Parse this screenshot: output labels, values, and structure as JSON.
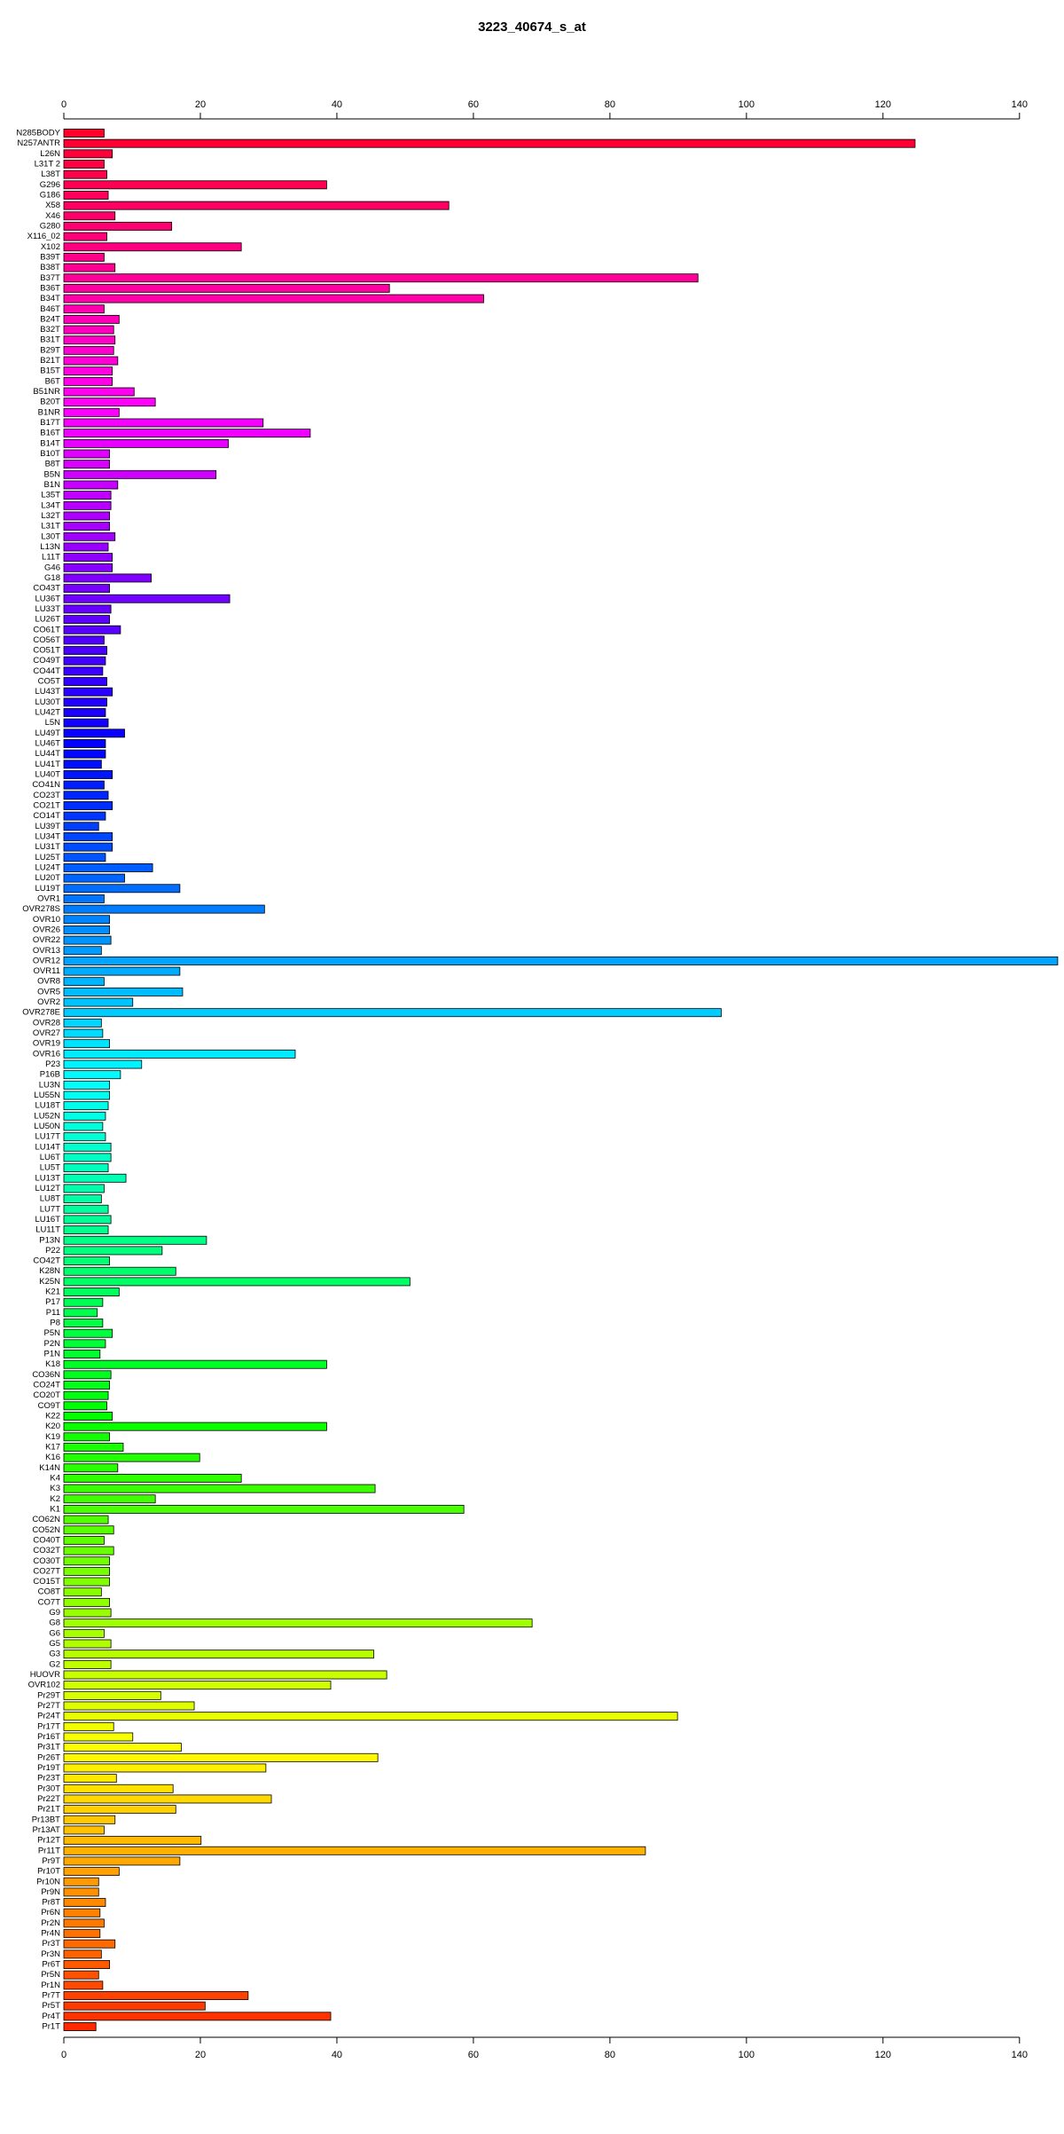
{
  "chart_data": {
    "type": "barh",
    "title": "3223_40674_s_at",
    "categories": [
      "N285BODY",
      "N257ANTR",
      "L26N",
      "L31T 2",
      "L38T",
      "G296",
      "G186",
      "X58",
      "X46",
      "G280",
      "X116_02",
      "X102",
      "B39T",
      "B38T",
      "B37T",
      "B36T",
      "B34T",
      "B46T",
      "B24T",
      "B32T",
      "B31T",
      "B29T",
      "B21T",
      "B15T",
      "B6T",
      "B51NR",
      "B20T",
      "B1NR",
      "B17T",
      "B16T",
      "B14T",
      "B10T",
      "B8T",
      "B5N",
      "B1N",
      "L35T",
      "L34T",
      "L32T",
      "L31T",
      "L30T",
      "L13N",
      "L11T",
      "G46",
      "G18",
      "CO43T",
      "LU36T",
      "LU33T",
      "LU26T",
      "CO61T",
      "CO56T",
      "CO51T",
      "CO49T",
      "CO44T",
      "CO5T",
      "LU43T",
      "LU30T",
      "LU42T",
      "L5N",
      "LU49T",
      "LU46T",
      "LU44T",
      "LU41T",
      "LU40T",
      "CO41N",
      "CO23T",
      "CO21T",
      "CO14T",
      "LU39T",
      "LU34T",
      "LU31T",
      "LU25T",
      "LU24T",
      "LU20T",
      "LU19T",
      "OVR1",
      "OVR278S",
      "OVR10",
      "OVR26",
      "OVR22",
      "OVR13",
      "OVR12",
      "OVR11",
      "OVR8",
      "OVR5",
      "OVR2",
      "OVR278E",
      "OVR28",
      "OVR27",
      "OVR19",
      "OVR16",
      "P23",
      "P16B",
      "LU3N",
      "LU55N",
      "LU18T",
      "LU52N",
      "LU50N",
      "LU17T",
      "LU14T",
      "LU6T",
      "LU5T",
      "LU13T",
      "LU12T",
      "LU8T",
      "LU7T",
      "LU16T",
      "LU11T",
      "P13N",
      "P22",
      "CO42T",
      "K28N",
      "K25N",
      "K21",
      "P17",
      "P11",
      "P8",
      "P5N",
      "P2N",
      "P1N",
      "K18",
      "CO36N",
      "CO24T",
      "CO20T",
      "CO9T",
      "K22",
      "K20",
      "K19",
      "K17",
      "K16",
      "K14N",
      "K4",
      "K3",
      "K2",
      "K1",
      "CO62N",
      "CO52N",
      "CO40T",
      "CO32T",
      "CO30T",
      "CO27T",
      "CO15T",
      "CO8T",
      "CO7T",
      "G9",
      "G8",
      "G6",
      "G5",
      "G3",
      "G2",
      "HUOVR",
      "OVR102",
      "Pr29T",
      "Pr27T",
      "Pr24T",
      "Pr17T",
      "Pr16T",
      "Pr31T",
      "Pr26T",
      "Pr19T",
      "Pr23T",
      "Pr30T",
      "Pr22T",
      "Pr21T",
      "Pr13BT",
      "Pr13AT",
      "Pr12T",
      "Pr11T",
      "Pr9T",
      "Pr10T",
      "Pr10N",
      "Pr9N",
      "Pr8T",
      "Pr6N",
      "Pr2N",
      "Pr4N",
      "Pr3T",
      "Pr3N",
      "Pr6T",
      "Pr5N",
      "Pr1N",
      "Pr7T",
      "Pr5T",
      "Pr4T",
      "Pr1T"
    ],
    "values": [
      5.9,
      124.7,
      7.1,
      5.9,
      6.3,
      38.5,
      6.5,
      56.4,
      7.5,
      15.8,
      6.3,
      26,
      5.9,
      7.5,
      92.9,
      47.7,
      61.5,
      5.9,
      8.1,
      7.3,
      7.5,
      7.3,
      7.9,
      7.1,
      7.1,
      10.3,
      13.4,
      8.1,
      29.2,
      36.1,
      24.1,
      6.7,
      6.7,
      22.3,
      7.9,
      6.9,
      6.9,
      6.7,
      6.7,
      7.5,
      6.5,
      7.1,
      7.1,
      12.8,
      6.7,
      24.3,
      6.9,
      6.7,
      8.3,
      5.9,
      6.3,
      6.1,
      5.7,
      6.3,
      7.1,
      6.3,
      6.1,
      6.5,
      8.9,
      6.1,
      6.1,
      5.5,
      7.1,
      5.9,
      6.5,
      7.1,
      6.1,
      5.1,
      7.1,
      7.1,
      6.1,
      13,
      8.9,
      17,
      5.9,
      29.4,
      6.7,
      6.7,
      6.9,
      5.5,
      145.6,
      17,
      5.9,
      17.4,
      10.1,
      96.3,
      5.5,
      5.7,
      6.7,
      33.9,
      11.4,
      8.3,
      6.7,
      6.7,
      6.5,
      6.1,
      5.7,
      6.1,
      6.9,
      6.9,
      6.5,
      9.1,
      5.9,
      5.5,
      6.5,
      6.9,
      6.5,
      20.9,
      14.4,
      6.7,
      16.4,
      50.7,
      8.1,
      5.7,
      4.9,
      5.7,
      7.1,
      6.1,
      5.3,
      38.5,
      6.9,
      6.7,
      6.5,
      6.3,
      7.1,
      38.5,
      6.7,
      8.7,
      19.9,
      7.9,
      26,
      45.6,
      13.4,
      58.6,
      6.5,
      7.3,
      5.9,
      7.3,
      6.7,
      6.7,
      6.7,
      5.5,
      6.7,
      6.9,
      68.6,
      5.9,
      6.9,
      45.4,
      6.9,
      47.3,
      39.1,
      14.2,
      19.1,
      89.9,
      7.3,
      10.1,
      17.2,
      46,
      29.6,
      7.7,
      16,
      30.4,
      16.4,
      7.5,
      5.9,
      20.1,
      85.2,
      17,
      8.1,
      5.1,
      5.1,
      6.1,
      5.3,
      5.9,
      5.3,
      7.5,
      5.5,
      6.7,
      5.1,
      5.7,
      27,
      20.7,
      39.1,
      4.7
    ],
    "hue_range": [
      350,
      10
    ],
    "xlim": [
      0,
      146
    ],
    "xticks": [
      0,
      20,
      40,
      60,
      80,
      100,
      120,
      140
    ]
  }
}
